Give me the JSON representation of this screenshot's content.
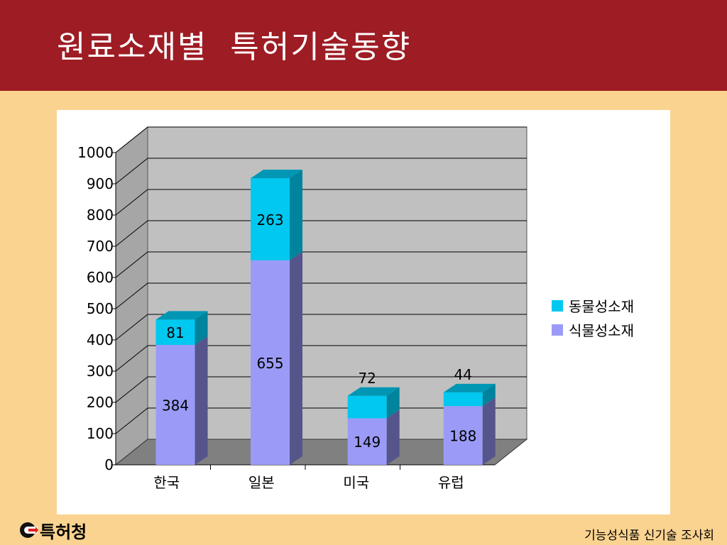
{
  "slide": {
    "title": "원료소재별  특허기술동향",
    "org_name": "특허청",
    "footer_text": "기능성식품 신기술 조사회"
  },
  "colors": {
    "header_bg": "#9e1c24",
    "slide_bg": "#fbd390",
    "plant_series": "#9b9bf7",
    "animal_series": "#00c8f0",
    "wall": "#c0c0c0",
    "floor": "#808080"
  },
  "chart_data": {
    "type": "bar",
    "stacked": true,
    "three_d": true,
    "categories": [
      "한국",
      "일본",
      "미국",
      "유럽"
    ],
    "series": [
      {
        "name": "식물성소재",
        "values": [
          384,
          655,
          149,
          188
        ],
        "color": "#9b9bf7"
      },
      {
        "name": "동물성소재",
        "values": [
          81,
          263,
          72,
          44
        ],
        "color": "#00c8f0"
      }
    ],
    "ylim": [
      0,
      1000
    ],
    "yticks": [
      "0",
      "100",
      "200",
      "300",
      "400",
      "500",
      "600",
      "700",
      "800",
      "900",
      "1000"
    ],
    "grid": true,
    "legend_position": "right"
  }
}
